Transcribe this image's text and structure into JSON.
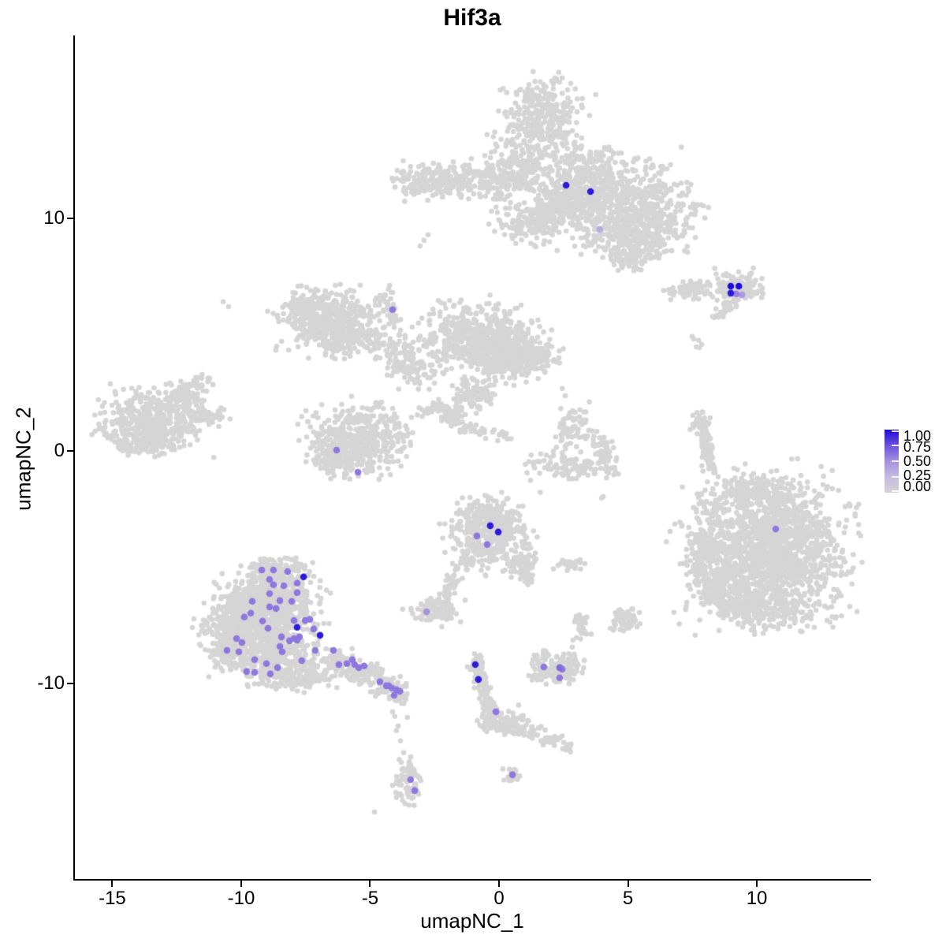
{
  "figure": {
    "title": "Hif3a"
  },
  "axes": {
    "x": {
      "label": "umapNC_1",
      "ticks": [
        -15,
        -10,
        -5,
        0,
        5,
        10
      ],
      "lim": [
        -16.45,
        14.37
      ]
    },
    "y": {
      "label": "umapNC_2",
      "ticks": [
        10,
        0,
        -10
      ],
      "lim": [
        -18.41,
        17.86
      ]
    }
  },
  "legend": {
    "labels": [
      "1.00",
      "0.75",
      "0.50",
      "0.25",
      "0.00"
    ],
    "values": [
      1,
      0.75,
      0.5,
      0.25,
      0
    ]
  },
  "chart_data": {
    "type": "scatter",
    "title": "Hif3a",
    "xlabel": "umapNC_1",
    "ylabel": "umapNC_2",
    "xlim": [
      -16.45,
      14.37
    ],
    "ylim": [
      -18.41,
      17.86
    ],
    "grid": false,
    "legend_position": "right",
    "colors": {
      "base_point": "#d5d5d5",
      "scale": [
        [
          0,
          "#d3d3d3"
        ],
        [
          0.25,
          "#c4bce1"
        ],
        [
          0.5,
          "#a491e0"
        ],
        [
          0.75,
          "#6c50de"
        ],
        [
          1,
          "#1e0bdb"
        ]
      ]
    },
    "point_radius": {
      "base": 3.3,
      "expressing": 4.3
    },
    "background_clusters": [
      {
        "name": "top-large",
        "components": [
          [
            1.68,
            14.31,
            1.38,
            1.42,
            320
          ],
          [
            0.67,
            12.2,
            0.95,
            1.15,
            200
          ],
          [
            3.12,
            11.76,
            1.25,
            1.2,
            280
          ],
          [
            4.8,
            10.58,
            2.29,
            1.53,
            650
          ],
          [
            5.11,
            9.22,
            1.53,
            0.85,
            220
          ],
          [
            -1.62,
            11.59,
            1.99,
            0.61,
            260
          ],
          [
            -3.3,
            11.42,
            0.55,
            0.54,
            40
          ],
          [
            1.19,
            9.83,
            1.07,
            0.75,
            150
          ],
          [
            5.11,
            8.2,
            0.92,
            0.41,
            60
          ],
          [
            2.3,
            10.6,
            0.9,
            0.8,
            160
          ]
        ]
      },
      {
        "name": "right-small",
        "components": [
          [
            7.4,
            6.95,
            0.98,
            0.31,
            80
          ],
          [
            9.24,
            7.02,
            0.8,
            0.58,
            120
          ],
          [
            8.53,
            5.9,
            0.24,
            0.2,
            14
          ],
          [
            8.93,
            6.2,
            0.24,
            0.2,
            14
          ]
        ]
      },
      {
        "name": "center-left-butterfly",
        "components": [
          [
            -6.51,
            5.66,
            1.68,
            1.02,
            420
          ],
          [
            -7.43,
            6.17,
            0.92,
            0.51,
            110
          ],
          [
            -5.9,
            4.75,
            1.22,
            0.61,
            140
          ],
          [
            -4.37,
            6.51,
            0.24,
            0.41,
            25
          ],
          [
            -4.07,
            5.83,
            0.24,
            0.41,
            25
          ],
          [
            -3.85,
            4.24,
            0.92,
            0.85,
            80
          ],
          [
            -3.39,
            3.39,
            0.76,
            0.68,
            60
          ],
          [
            -0.7,
            4.81,
            1.83,
            1.19,
            550
          ],
          [
            0.52,
            3.97,
            1.38,
            0.85,
            230
          ],
          [
            1.35,
            4.07,
            0.76,
            0.51,
            80
          ],
          [
            -1.01,
            2.44,
            0.76,
            0.61,
            90
          ],
          [
            -1.71,
            1.73,
            0.37,
            0.34,
            35
          ],
          [
            -1.28,
            1.05,
            0.31,
            0.27,
            22
          ],
          [
            -5.44,
            0.58,
            1.68,
            1.19,
            450
          ],
          [
            -6.21,
            -0.27,
            0.92,
            0.68,
            130
          ],
          [
            -2.54,
            1.83,
            0.43,
            0.27,
            26
          ],
          [
            -1.93,
            1.36,
            0.43,
            0.27,
            26
          ],
          [
            -0.55,
            0.81,
            0.31,
            0.2,
            14
          ],
          [
            0.15,
            0.64,
            0.31,
            0.2,
            12
          ]
        ]
      },
      {
        "name": "far-left-oval",
        "components": [
          [
            -13.39,
            1.25,
            1.68,
            1.08,
            500
          ],
          [
            -12.26,
            2.37,
            0.55,
            0.41,
            70
          ],
          [
            -11.65,
            2.85,
            0.37,
            0.31,
            30
          ],
          [
            -11.25,
            1.49,
            0.55,
            0.27,
            35
          ],
          [
            -13.85,
            0.24,
            0.92,
            0.41,
            70
          ]
        ]
      },
      {
        "name": "center-small-groups",
        "components": [
          [
            2.81,
            0.92,
            0.86,
            0.95,
            70
          ],
          [
            2.97,
            -0.68,
            1.38,
            0.47,
            110
          ],
          [
            4.04,
            0.07,
            0.43,
            0.41,
            35
          ],
          [
            2.72,
            -4.95,
            0.43,
            0.24,
            22
          ]
        ]
      },
      {
        "name": "right-ribbon",
        "components": [
          [
            7.8,
            1.08,
            0.28,
            0.47,
            40
          ],
          [
            8.04,
            0.24,
            0.24,
            0.47,
            40
          ],
          [
            8.17,
            -0.54,
            0.21,
            0.34,
            26
          ],
          [
            8.17,
            -2.31,
            0.55,
            0.95,
            22
          ]
        ]
      },
      {
        "name": "big-right-round",
        "components": [
          [
            10.46,
            -4.34,
            2.45,
            2.54,
            1700
          ],
          [
            10.0,
            -1.8,
            1.22,
            0.51,
            130
          ],
          [
            7.95,
            -4.34,
            0.55,
            0.85,
            100
          ],
          [
            8.32,
            -5.86,
            0.61,
            0.68,
            100
          ],
          [
            9.08,
            -6.71,
            0.76,
            0.51,
            90
          ],
          [
            10.61,
            -6.88,
            1.38,
            0.51,
            110
          ]
        ]
      },
      {
        "name": "center-round",
        "components": [
          [
            -0.34,
            -3.56,
            1.28,
            1.19,
            420
          ],
          [
            -0.64,
            -2.58,
            0.55,
            0.34,
            50
          ],
          [
            0.89,
            -4.85,
            0.43,
            0.61,
            60
          ],
          [
            1.13,
            -5.46,
            0.24,
            0.27,
            16
          ],
          [
            -1.31,
            -4.85,
            0.31,
            0.34,
            26
          ],
          [
            -1.77,
            -5.69,
            0.24,
            0.41,
            22
          ],
          [
            -2.08,
            -6.2,
            0.24,
            0.27,
            16
          ],
          [
            -2.48,
            -6.88,
            0.8,
            0.47,
            100
          ]
        ]
      },
      {
        "name": "bottom-left-main",
        "components": [
          [
            -8.65,
            -5.19,
            1.07,
            0.47,
            170
          ],
          [
            -8.96,
            -6.37,
            1.68,
            0.85,
            420
          ],
          [
            -9.27,
            -7.56,
            1.83,
            0.85,
            430
          ],
          [
            -8.96,
            -8.75,
            1.68,
            0.75,
            330
          ],
          [
            -8.04,
            -9.69,
            1.38,
            0.51,
            190
          ],
          [
            -10.34,
            -8.07,
            0.61,
            1.02,
            140
          ],
          [
            -6.21,
            -9.02,
            0.55,
            0.41,
            65
          ],
          [
            -5.29,
            -9.59,
            0.61,
            0.41,
            75
          ],
          [
            -4.37,
            -10.17,
            0.55,
            0.34,
            55
          ],
          [
            -3.82,
            -10.58,
            0.31,
            0.27,
            28
          ]
        ]
      },
      {
        "name": "bottom-left-tail-blob",
        "components": [
          [
            -3.52,
            -14.17,
            0.43,
            0.88,
            80
          ]
        ]
      },
      {
        "name": "bottom-funnel",
        "components": [
          [
            -0.89,
            -9.25,
            0.31,
            0.41,
            35
          ],
          [
            -0.64,
            -10.1,
            0.28,
            0.41,
            30
          ],
          [
            -0.4,
            -10.85,
            0.31,
            0.41,
            30
          ],
          [
            0.06,
            -11.63,
            0.76,
            0.47,
            110
          ],
          [
            0.98,
            -11.97,
            0.55,
            0.27,
            35
          ],
          [
            1.9,
            -12.37,
            0.49,
            0.24,
            25
          ],
          [
            2.6,
            -12.75,
            0.31,
            0.2,
            12
          ]
        ]
      },
      {
        "name": "bottom-center-right-small",
        "components": [
          [
            2.23,
            -9.36,
            0.8,
            0.54,
            130
          ],
          [
            1.74,
            -8.85,
            0.31,
            0.27,
            20
          ],
          [
            2.81,
            -9.02,
            0.24,
            0.2,
            12
          ],
          [
            3.21,
            -7.49,
            0.24,
            0.44,
            30
          ]
        ]
      },
      {
        "name": "tiny-blob-right",
        "components": [
          [
            4.89,
            -7.22,
            0.43,
            0.41,
            60
          ]
        ]
      },
      {
        "name": "tiny-blob-bottom",
        "components": [
          [
            0.52,
            -13.97,
            0.27,
            0.27,
            22
          ]
        ]
      }
    ],
    "background_singles": [
      [
        7.49,
        4.92
      ],
      [
        7.74,
        4.75
      ],
      [
        7.65,
        4.47
      ],
      [
        7.86,
        4.58
      ],
      [
        4.04,
        -1.97
      ],
      [
        2.11,
        -5.08
      ],
      [
        3.33,
        -4.85
      ],
      [
        2.45,
        2.68
      ],
      [
        2.57,
        2.37
      ],
      [
        3.98,
        -2.03
      ],
      [
        7.55,
        4.81
      ],
      [
        7.77,
        4.44
      ],
      [
        -4.13,
        -11.22
      ],
      [
        -4.04,
        -11.42
      ],
      [
        -3.91,
        -11.83
      ],
      [
        -3.98,
        -12.03
      ],
      [
        -3.55,
        -11.46
      ],
      [
        -3.82,
        -12.47
      ],
      [
        -3.7,
        -12.98
      ],
      [
        -4.83,
        -15.53
      ],
      [
        3.18,
        -7.19
      ],
      [
        2.87,
        -8.14
      ],
      [
        2.84,
        -8.44
      ],
      [
        5.02,
        8.1
      ],
      [
        -2.91,
        9.05
      ],
      [
        -3.06,
        8.81
      ],
      [
        -2.75,
        9.29
      ],
      [
        -10.7,
        6.41
      ],
      [
        -10.49,
        6.2
      ]
    ],
    "expressing_cells": [
      [
        2.6,
        11.42,
        0.95
      ],
      [
        3.55,
        11.15,
        0.95
      ],
      [
        3.91,
        9.53,
        0.35
      ],
      [
        8.99,
        7.08,
        1
      ],
      [
        9.3,
        7.08,
        1
      ],
      [
        8.99,
        6.78,
        0.95
      ],
      [
        9.2,
        6.75,
        0.55
      ],
      [
        9.42,
        6.71,
        0.45
      ],
      [
        -4.13,
        6.07,
        0.6
      ],
      [
        -6.3,
        0.03,
        0.6
      ],
      [
        -5.47,
        -0.92,
        0.6
      ],
      [
        10.73,
        -3.36,
        0.6
      ],
      [
        -0.34,
        -3.22,
        0.95
      ],
      [
        -0.03,
        -3.49,
        0.95
      ],
      [
        -0.86,
        -3.66,
        0.6
      ],
      [
        -0.46,
        -4.03,
        0.6
      ],
      [
        -2.81,
        -6.92,
        0.5
      ],
      [
        -9.2,
        -5.12,
        0.6
      ],
      [
        -8.75,
        -5.12,
        0.6
      ],
      [
        -8.2,
        -5.19,
        0.6
      ],
      [
        -8.9,
        -5.53,
        0.6
      ],
      [
        -8.75,
        -5.76,
        0.6
      ],
      [
        -7.83,
        -5.69,
        0.6
      ],
      [
        -8.35,
        -5.8,
        0.6
      ],
      [
        -7.58,
        -5.42,
        0.95
      ],
      [
        -7.83,
        -6.1,
        0.6
      ],
      [
        -8.9,
        -6.14,
        0.6
      ],
      [
        -9.57,
        -6.47,
        0.6
      ],
      [
        -8.5,
        -6.44,
        0.6
      ],
      [
        -8.04,
        -6.47,
        0.6
      ],
      [
        -8.9,
        -6.71,
        0.6
      ],
      [
        -8.65,
        -6.78,
        0.6
      ],
      [
        -7.34,
        -7.25,
        0.6
      ],
      [
        -9.88,
        -7.15,
        0.6
      ],
      [
        -9.63,
        -6.98,
        0.6
      ],
      [
        -9.17,
        -7.32,
        0.6
      ],
      [
        -8.96,
        -7.63,
        0.6
      ],
      [
        -8.44,
        -8.0,
        0.6
      ],
      [
        -7.83,
        -7.59,
        0.95
      ],
      [
        -7.52,
        -7.29,
        0.6
      ],
      [
        -6.94,
        -7.93,
        0.95
      ],
      [
        -10.18,
        -8.07,
        0.6
      ],
      [
        -9.97,
        -8.24,
        0.6
      ],
      [
        -9.48,
        -8.98,
        0.6
      ],
      [
        -9.02,
        -9.15,
        0.6
      ],
      [
        -10.55,
        -8.58,
        0.6
      ],
      [
        -10.09,
        -8.64,
        0.6
      ],
      [
        -9.79,
        -9.49,
        0.6
      ],
      [
        -9.48,
        -9.53,
        0.6
      ],
      [
        -8.87,
        -9.59,
        0.6
      ],
      [
        -8.59,
        -9.32,
        0.6
      ],
      [
        -8.5,
        -8.41,
        0.6
      ],
      [
        -8.41,
        -8.64,
        0.6
      ],
      [
        -7.95,
        -8.07,
        0.6
      ],
      [
        -7.74,
        -8.0,
        0.6
      ],
      [
        -7.83,
        -8.14,
        0.6
      ],
      [
        -8.13,
        -8.17,
        0.6
      ],
      [
        -7.65,
        -9.02,
        0.6
      ],
      [
        -7.13,
        -8.58,
        0.6
      ],
      [
        -6.42,
        -8.58,
        0.6
      ],
      [
        -6.21,
        -9.19,
        0.6
      ],
      [
        -5.69,
        -8.98,
        0.6
      ],
      [
        -5.44,
        -9.32,
        0.6
      ],
      [
        -5.23,
        -9.25,
        0.6
      ],
      [
        -4.62,
        -9.93,
        0.6
      ],
      [
        -4.37,
        -10.1,
        0.6
      ],
      [
        -4.16,
        -10.2,
        0.6
      ],
      [
        -3.98,
        -10.27,
        0.6
      ],
      [
        -4.07,
        -10.51,
        0.6
      ],
      [
        -7.95,
        -7.29,
        0.6
      ],
      [
        -7.19,
        -7.66,
        0.6
      ],
      [
        -5.9,
        -9.15,
        0.6
      ],
      [
        -5.6,
        -9.19,
        0.6
      ],
      [
        -4.28,
        -10.1,
        0.6
      ],
      [
        -3.85,
        -10.34,
        0.6
      ],
      [
        -3.43,
        -14.14,
        0.6
      ],
      [
        -3.27,
        -14.61,
        0.6
      ],
      [
        -0.92,
        -9.19,
        0.95
      ],
      [
        -0.8,
        -9.83,
        0.95
      ],
      [
        -0.12,
        -11.22,
        0.6
      ],
      [
        1.74,
        -9.29,
        0.6
      ],
      [
        2.35,
        -9.32,
        0.65
      ],
      [
        2.45,
        -9.39,
        0.6
      ],
      [
        2.35,
        -9.76,
        0.6
      ],
      [
        0.52,
        -13.93,
        0.6
      ]
    ]
  }
}
